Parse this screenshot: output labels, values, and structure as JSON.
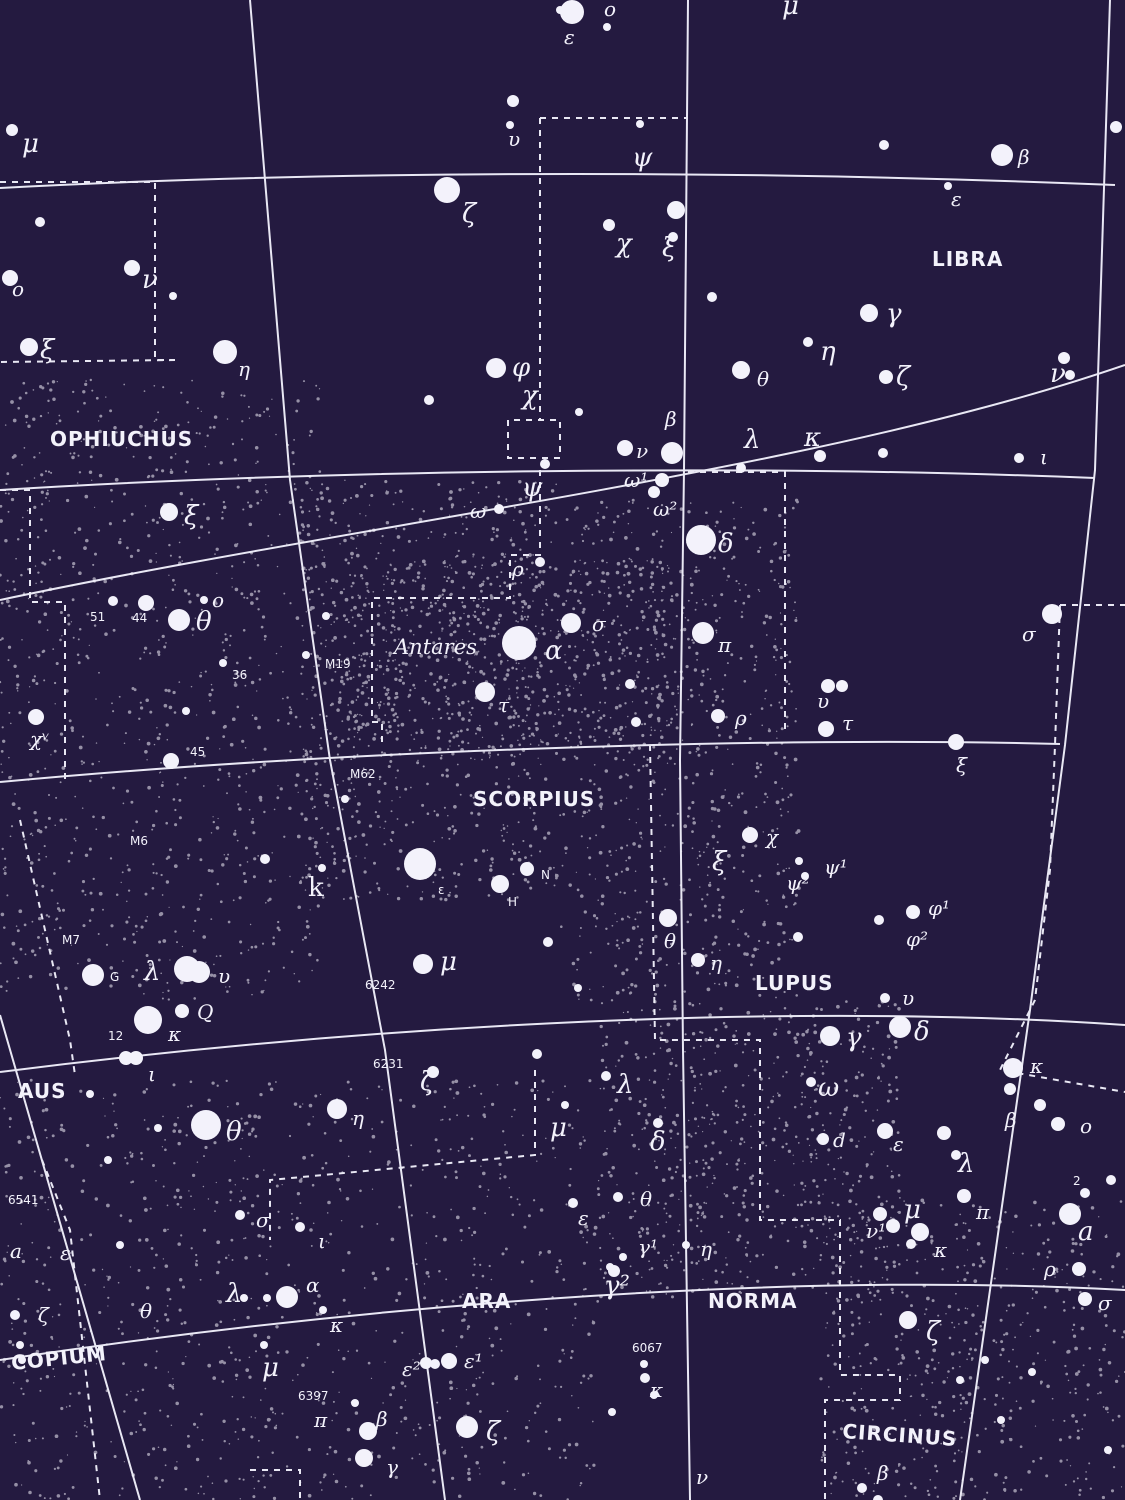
{
  "colors": {
    "background": "#241a40",
    "ink": "#f3f2fb"
  },
  "constellations": {
    "libra": "LIBRA",
    "ophiuchus": "OPHIUCHUS",
    "scorpius": "SCORPIUS",
    "lupus": "LUPUS",
    "ara": "ARA",
    "norma": "NORMA",
    "circinus": "CIRCINUS",
    "aus": "AUS",
    "scopium": "COPIUM"
  },
  "named_stars": {
    "antares": "Antares"
  },
  "catalog_labels": {
    "m19": "M19",
    "m62": "M62",
    "m6": "M6",
    "m7": "M7",
    "ngc6242": "6242",
    "ngc6231": "6231",
    "ngc6541": "6541",
    "ngc6067": "6067",
    "ngc6397": "6397",
    "n51": "51",
    "n44": "44",
    "n36": "36",
    "n45": "45",
    "n12": "12",
    "n2": "2"
  },
  "greek": {
    "top_epsilon": "ε",
    "top_omicron": "o",
    "top_mu": "μ",
    "left_mu": "μ",
    "upsilon_top": "υ",
    "psi_top": "ψ",
    "beta_libra": "β",
    "epsilon_libra": "ε",
    "zeta_oph": "ζ",
    "chi_oph": "χ",
    "xi_oph": "ξ",
    "gamma_libra": "γ",
    "eta_libra": "η",
    "zeta_libra": "ζ",
    "theta_libra": "θ",
    "nu_libra": "ν",
    "omicron_oph": "o",
    "nu_oph": "ν",
    "xi_left": "ξ",
    "eta_oph": "η",
    "phi_oph": "φ",
    "chi_oph2": "χ",
    "beta_sco": "β",
    "nu_sco": "ν",
    "lambda_lib": "λ",
    "kappa_lib": "κ",
    "iota_lib": "ι",
    "omega1": "ω¹",
    "omega2": "ω²",
    "psi_oph": "ψ",
    "omega_oph": "ω",
    "xi_oph2": "ξ",
    "delta_sco": "δ",
    "rho_oph": "ρ",
    "sigma_sco": "σ",
    "alpha_sco": "α",
    "pi_sco": "π",
    "theta_oph": "θ",
    "tau_sco": "τ",
    "rho_sco": "ρ",
    "upsilon_lib": "υ",
    "tau_lib": "τ",
    "sigma_lib": "σ",
    "o_oph": "o",
    "chi5": "χᵛ",
    "xi_lup": "ξ",
    "chi_lup": "χ",
    "psi2_lup": "ψ²",
    "psi1_lup": "ψ¹",
    "phi1_lup": "φ¹",
    "phi2_lup": "φ²",
    "k_sco": "k",
    "epsilon_sco": "ε",
    "n_sco": "N",
    "h_sco": "H",
    "theta_lup": "θ",
    "eta_lup": "η",
    "mu_sco": "μ",
    "g_sco": "G",
    "lambda_sco": "λ",
    "upsilon_sco": "υ",
    "kappa_sco": "κ",
    "alpha_q": "Q",
    "iota_sco": "ι",
    "upsilon_lup": "υ",
    "gamma_lup": "γ",
    "delta_lup": "δ",
    "kappa_lup": "κ",
    "zeta_sco": "ζ",
    "lambda_nor": "λ",
    "omega_lup": "ω",
    "beta_lup": "β",
    "o_lup": "o",
    "theta_sco": "θ",
    "eta_sco": "η",
    "mu_nor": "μ",
    "delta_nor": "δ",
    "d_lup": "d",
    "epsilon_lup": "ε",
    "lambda_lup": "λ",
    "a_left": "a",
    "epsilon_left": "ε",
    "sigma_ara": "σ",
    "iota_ara": "ι",
    "epsilon_nor": "ε",
    "theta_nor": "θ",
    "mu_lup": "μ",
    "pi_lup": "π",
    "nu_lup": "ν¹",
    "kappa_lup2": "κ",
    "a_right": "a",
    "gamma1_nor": "γ¹",
    "eta_nor": "η",
    "gamma2_nor": "γ²",
    "rho_lup": "ρ",
    "sigma_lup": "σ",
    "lambda_ara": "λ",
    "alpha_ara": "α",
    "theta_left": "θ",
    "zeta_left": "ζ",
    "kappa_ara": "κ",
    "zeta_cir": "ζ",
    "mu_ara": "μ",
    "epsilon2_ara": "ε²",
    "epsilon1_ara": "ε¹",
    "kappa_nor": "κ",
    "beta_ara": "β",
    "pi_ara": "π",
    "zeta_ara": "ζ",
    "gamma_ara": "γ",
    "nu_bottom": "ν",
    "beta_cir": "β"
  }
}
